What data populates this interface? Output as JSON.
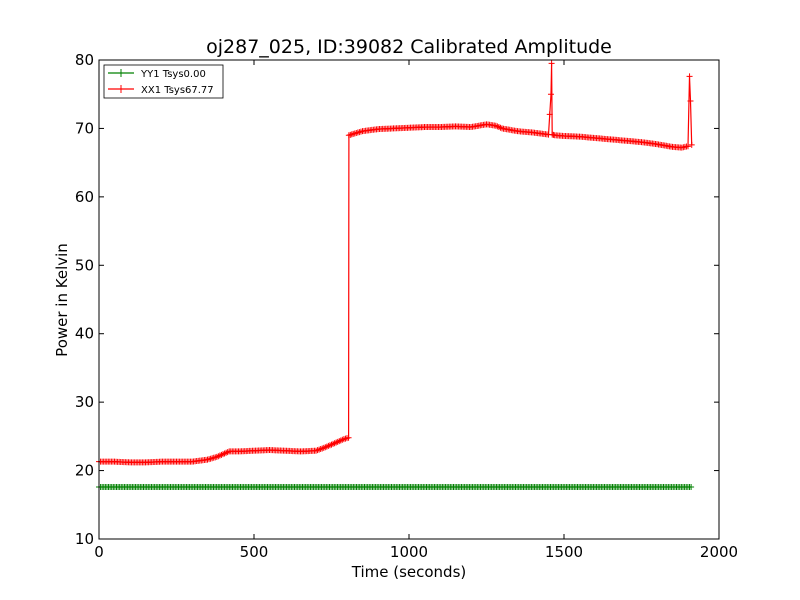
{
  "chart_data": {
    "type": "line",
    "title": "oj287_025, ID:39082 Calibrated Amplitude",
    "xlabel": "Time (seconds)",
    "ylabel": "Power in Kelvin",
    "xlim": [
      0,
      2000
    ],
    "ylim": [
      10,
      80
    ],
    "xticks": [
      0,
      500,
      1000,
      1500,
      2000
    ],
    "yticks": [
      10,
      20,
      30,
      40,
      50,
      60,
      70,
      80
    ],
    "grid": false,
    "legend_position": "top-left",
    "series": [
      {
        "name": "YY1 Tsys0.00",
        "color": "#008000",
        "marker": "+",
        "x": [
          0,
          200,
          400,
          600,
          800,
          1000,
          1200,
          1400,
          1600,
          1800,
          1910
        ],
        "y": [
          17.6,
          17.6,
          17.6,
          17.6,
          17.6,
          17.6,
          17.6,
          17.6,
          17.6,
          17.6,
          17.6
        ]
      },
      {
        "name": "XX1 Tsys67.77",
        "color": "#ff0000",
        "marker": "+",
        "x": [
          0,
          50,
          100,
          150,
          200,
          250,
          300,
          350,
          380,
          420,
          450,
          500,
          550,
          600,
          650,
          700,
          730,
          760,
          790,
          805,
          806,
          820,
          850,
          900,
          950,
          1000,
          1050,
          1100,
          1150,
          1200,
          1250,
          1280,
          1300,
          1350,
          1400,
          1450,
          1458,
          1460,
          1462,
          1470,
          1500,
          1550,
          1600,
          1650,
          1700,
          1750,
          1800,
          1850,
          1880,
          1900,
          1905,
          1908,
          1912
        ],
        "y": [
          21.3,
          21.3,
          21.2,
          21.2,
          21.3,
          21.3,
          21.3,
          21.6,
          22.0,
          22.8,
          22.8,
          22.9,
          23.0,
          22.9,
          22.8,
          22.9,
          23.4,
          24.0,
          24.6,
          24.8,
          69.0,
          69.2,
          69.6,
          69.9,
          70.0,
          70.1,
          70.2,
          70.2,
          70.3,
          70.2,
          70.6,
          70.4,
          70.0,
          69.6,
          69.4,
          69.1,
          75.0,
          79.5,
          69.1,
          69.0,
          68.9,
          68.8,
          68.6,
          68.4,
          68.2,
          68.0,
          67.7,
          67.3,
          67.2,
          67.4,
          77.6,
          74.0,
          67.6
        ]
      }
    ]
  }
}
